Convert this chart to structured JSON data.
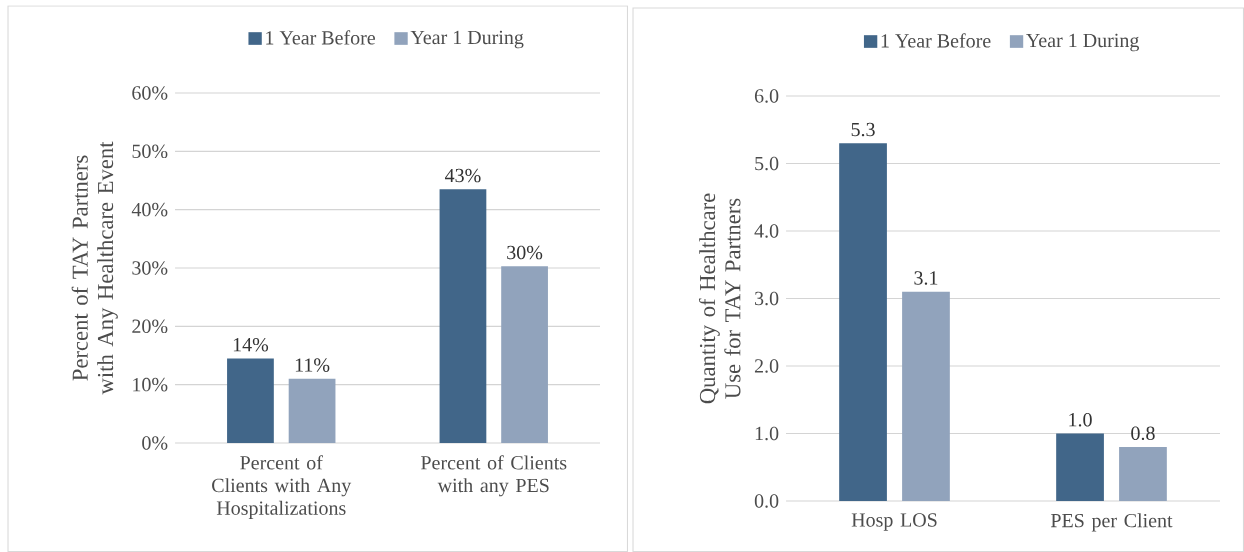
{
  "chart_data": [
    {
      "type": "bar",
      "categories": [
        "Percent of Clients with Any Hospitalizations",
        "Percent of Clients with any PES"
      ],
      "ylabel": "Percent of TAY Partners with Any Healthcare Event",
      "ylim": [
        0,
        60
      ],
      "yticks": [
        {
          "value": 0,
          "label": "0%"
        },
        {
          "value": 10,
          "label": "10%"
        },
        {
          "value": 20,
          "label": "20%"
        },
        {
          "value": 30,
          "label": "30%"
        },
        {
          "value": 40,
          "label": "40%"
        },
        {
          "value": 50,
          "label": "50%"
        },
        {
          "value": 60,
          "label": "60%"
        }
      ],
      "grid": "y",
      "legend": "top",
      "series": [
        {
          "name": "1 Year Before",
          "color": "#416689",
          "values": [
            14.5,
            43.5
          ],
          "value_labels": [
            "14%",
            "43%"
          ]
        },
        {
          "name": "Year 1 During",
          "color": "#91a3bc",
          "values": [
            11,
            30.3
          ],
          "value_labels": [
            "11%",
            "30%"
          ]
        }
      ]
    },
    {
      "type": "bar",
      "categories": [
        "Hosp LOS",
        "PES per Client"
      ],
      "ylabel": "Quantity of Healthcare Use for TAY Partners",
      "ylim": [
        0,
        6
      ],
      "yticks": [
        {
          "value": 0,
          "label": "0.0"
        },
        {
          "value": 1,
          "label": "1.0"
        },
        {
          "value": 2,
          "label": "2.0"
        },
        {
          "value": 3,
          "label": "3.0"
        },
        {
          "value": 4,
          "label": "4.0"
        },
        {
          "value": 5,
          "label": "5.0"
        },
        {
          "value": 6,
          "label": "6.0"
        }
      ],
      "grid": "y",
      "legend": "top",
      "series": [
        {
          "name": "1 Year Before",
          "color": "#416689",
          "values": [
            5.3,
            1.0
          ],
          "value_labels": [
            "5.3",
            "1.0"
          ]
        },
        {
          "name": "Year 1 During",
          "color": "#91a3bc",
          "values": [
            3.1,
            0.8
          ],
          "value_labels": [
            "3.1",
            "0.8"
          ]
        }
      ]
    }
  ]
}
